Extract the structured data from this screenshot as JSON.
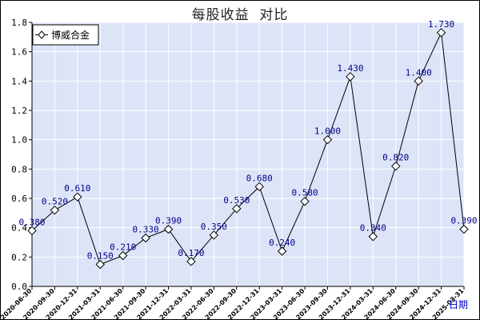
{
  "chart_data": {
    "type": "line",
    "title": "每股收益  对比",
    "xlabel": "日期",
    "ylabel": "",
    "ylim": [
      0,
      1.8
    ],
    "yticks": [
      "0.0",
      "0.2",
      "0.4",
      "0.6",
      "0.8",
      "1.0",
      "1.2",
      "1.4",
      "1.6",
      "1.8"
    ],
    "grid": true,
    "legend_position": "top-left",
    "categories": [
      "2020-06-30",
      "2020-09-30",
      "2020-12-31",
      "2021-03-31",
      "2021-06-30",
      "2021-09-30",
      "2021-12-31",
      "2022-03-31",
      "2022-06-30",
      "2022-09-30",
      "2022-12-31",
      "2023-03-31",
      "2023-06-30",
      "2023-09-30",
      "2023-12-31",
      "2024-03-31",
      "2024-06-30",
      "2024-09-30",
      "2024-12-31",
      "2025-03-31"
    ],
    "series": [
      {
        "name": "博威合金",
        "values": [
          0.38,
          0.52,
          0.61,
          0.15,
          0.21,
          0.33,
          0.39,
          0.17,
          0.35,
          0.53,
          0.68,
          0.24,
          0.58,
          1.0,
          1.43,
          0.34,
          0.82,
          1.4,
          1.73,
          0.39
        ],
        "labels": [
          "0.380",
          "0.520",
          "0.610",
          "0.150",
          "0.210",
          "0.330",
          "0.390",
          "0.170",
          "0.350",
          "0.530",
          "0.680",
          "0.240",
          "0.580",
          "1.000",
          "1.430",
          "0.340",
          "0.820",
          "1.400",
          "1.730",
          "0.390"
        ]
      }
    ],
    "colors": {
      "plot_background": "#dde4f7",
      "grid": "#ffffff",
      "line": "#000000",
      "marker_fill": "#ffffff",
      "data_label": "#00008b",
      "xlabel": "#0000cc"
    }
  }
}
